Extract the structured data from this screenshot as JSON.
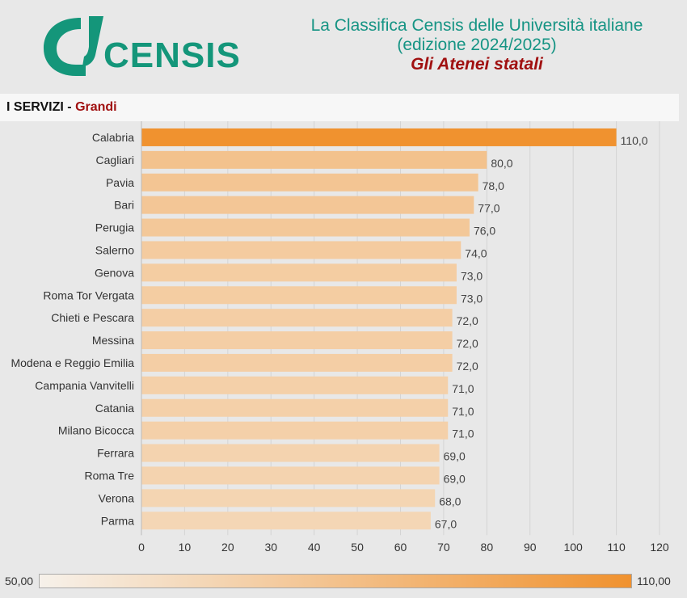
{
  "brand": {
    "name": "CENSIS",
    "color": "#14967a"
  },
  "header": {
    "line1": "La Classifica Censis delle Università italiane",
    "line2": "(edizione 2024/2025)",
    "line3": "Gli Atenei statali"
  },
  "section": {
    "label": "I SERVIZI",
    "separator": " - ",
    "group": "Grandi"
  },
  "chart_data": {
    "type": "bar",
    "orientation": "horizontal",
    "categories": [
      "Calabria",
      "Cagliari",
      "Pavia",
      "Bari",
      "Perugia",
      "Salerno",
      "Genova",
      "Roma Tor Vergata",
      "Chieti e Pescara",
      "Messina",
      "Modena e Reggio Emilia",
      "Campania Vanvitelli",
      "Catania",
      "Milano Bicocca",
      "Ferrara",
      "Roma Tre",
      "Verona",
      "Parma"
    ],
    "values": [
      110,
      80,
      78,
      77,
      76,
      74,
      73,
      73,
      72,
      72,
      72,
      71,
      71,
      71,
      69,
      69,
      68,
      67
    ],
    "value_labels": [
      "110,0",
      "80,0",
      "78,0",
      "77,0",
      "76,0",
      "74,0",
      "73,0",
      "73,0",
      "72,0",
      "72,0",
      "72,0",
      "71,0",
      "71,0",
      "71,0",
      "69,0",
      "69,0",
      "68,0",
      "67,0"
    ],
    "xlim": [
      0,
      120
    ],
    "xticks": [
      0,
      10,
      20,
      30,
      40,
      50,
      60,
      70,
      80,
      90,
      100,
      110,
      120
    ],
    "color_scale": {
      "min": 50,
      "max": 110,
      "min_color": "#f6f1ea",
      "max_color": "#f0922f"
    },
    "grid": true
  },
  "legend": {
    "min_label": "50,00",
    "max_label": "110,00"
  }
}
